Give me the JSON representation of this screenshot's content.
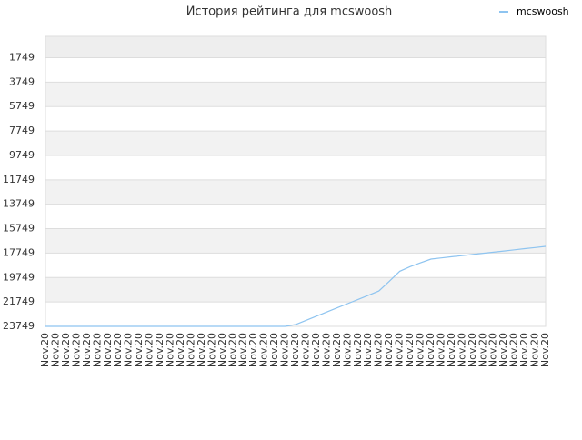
{
  "chart_data": {
    "type": "line",
    "title": "История рейтинга для mcswoosh",
    "categories": [
      "Nov.20",
      "Nov.20",
      "Nov.20",
      "Nov.20",
      "Nov.20",
      "Nov.20",
      "Nov.20",
      "Nov.20",
      "Nov.20",
      "Nov.20",
      "Nov.20",
      "Nov.20",
      "Nov.20",
      "Nov.20",
      "Nov.20",
      "Nov.20",
      "Nov.20",
      "Nov.20",
      "Nov.20",
      "Nov.20",
      "Nov.20",
      "Nov.20",
      "Nov.20",
      "Nov.20",
      "Nov.20",
      "Nov.20",
      "Nov.20",
      "Nov.20",
      "Nov.20",
      "Nov.20",
      "Nov.20",
      "Nov.20",
      "Nov.20",
      "Nov.20",
      "Nov.20",
      "Nov.20",
      "Nov.20",
      "Nov.20",
      "Nov.20",
      "Nov.20",
      "Nov.20",
      "Nov.20",
      "Nov.20",
      "Nov.20",
      "Nov.20",
      "Nov.20",
      "Nov.20",
      "Nov.20",
      "Nov.20"
    ],
    "series": [
      {
        "name": "mcswoosh",
        "color": "#8ec4f0",
        "values": [
          23749,
          23749,
          23749,
          23749,
          23749,
          23749,
          23749,
          23749,
          23749,
          23749,
          23749,
          23749,
          23749,
          23749,
          23749,
          23749,
          23749,
          23749,
          23749,
          23749,
          23749,
          23749,
          23749,
          23749,
          23600,
          23260,
          22915,
          22573,
          22230,
          21888,
          21545,
          21203,
          20853,
          20060,
          19237,
          18860,
          18544,
          18240,
          18143,
          18046,
          17957,
          17860,
          17763,
          17674,
          17577,
          17480,
          17384,
          17294,
          17200
        ]
      }
    ],
    "ylim": [
      23749,
      0
    ],
    "yticks": [
      1749,
      3749,
      5749,
      7749,
      9749,
      11749,
      13749,
      15749,
      17749,
      19749,
      21749,
      23749
    ],
    "grid": true,
    "legend": "top-right"
  }
}
